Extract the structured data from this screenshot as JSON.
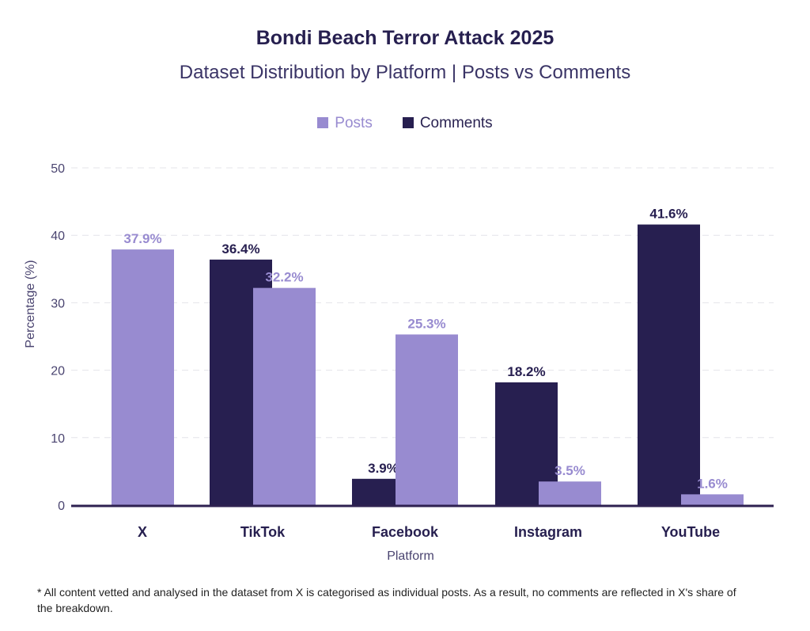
{
  "chart_data": {
    "type": "bar",
    "title": "Bondi Beach Terror Attack 2025",
    "subtitle": "Dataset Distribution by Platform | Posts vs Comments",
    "xlabel": "Platform",
    "ylabel": "Percentage  (%)",
    "ylim": [
      0,
      50
    ],
    "yticks": [
      "0",
      "10",
      "20",
      "30",
      "40",
      "50"
    ],
    "categories": [
      "X",
      "TikTok",
      "Facebook",
      "Instagram",
      "YouTube"
    ],
    "series": [
      {
        "name": "Posts",
        "color": "#988bd0",
        "values": [
          37.9,
          32.2,
          25.3,
          3.5,
          1.6
        ],
        "labels": [
          "37.9%",
          "32.2%",
          "25.3%",
          "3.5%",
          "1.6%"
        ]
      },
      {
        "name": "Comments",
        "color": "#271f50",
        "values": [
          null,
          36.4,
          3.9,
          18.2,
          41.6
        ],
        "labels": [
          null,
          "36.4%",
          "3.9%",
          "18.2%",
          "41.6%"
        ]
      }
    ],
    "legend": "top-center",
    "grid": true
  },
  "footnote": "* All content vetted and analysed in the dataset from X is categorised as individual posts. As a result, no comments are reflected in X's share of the breakdown."
}
